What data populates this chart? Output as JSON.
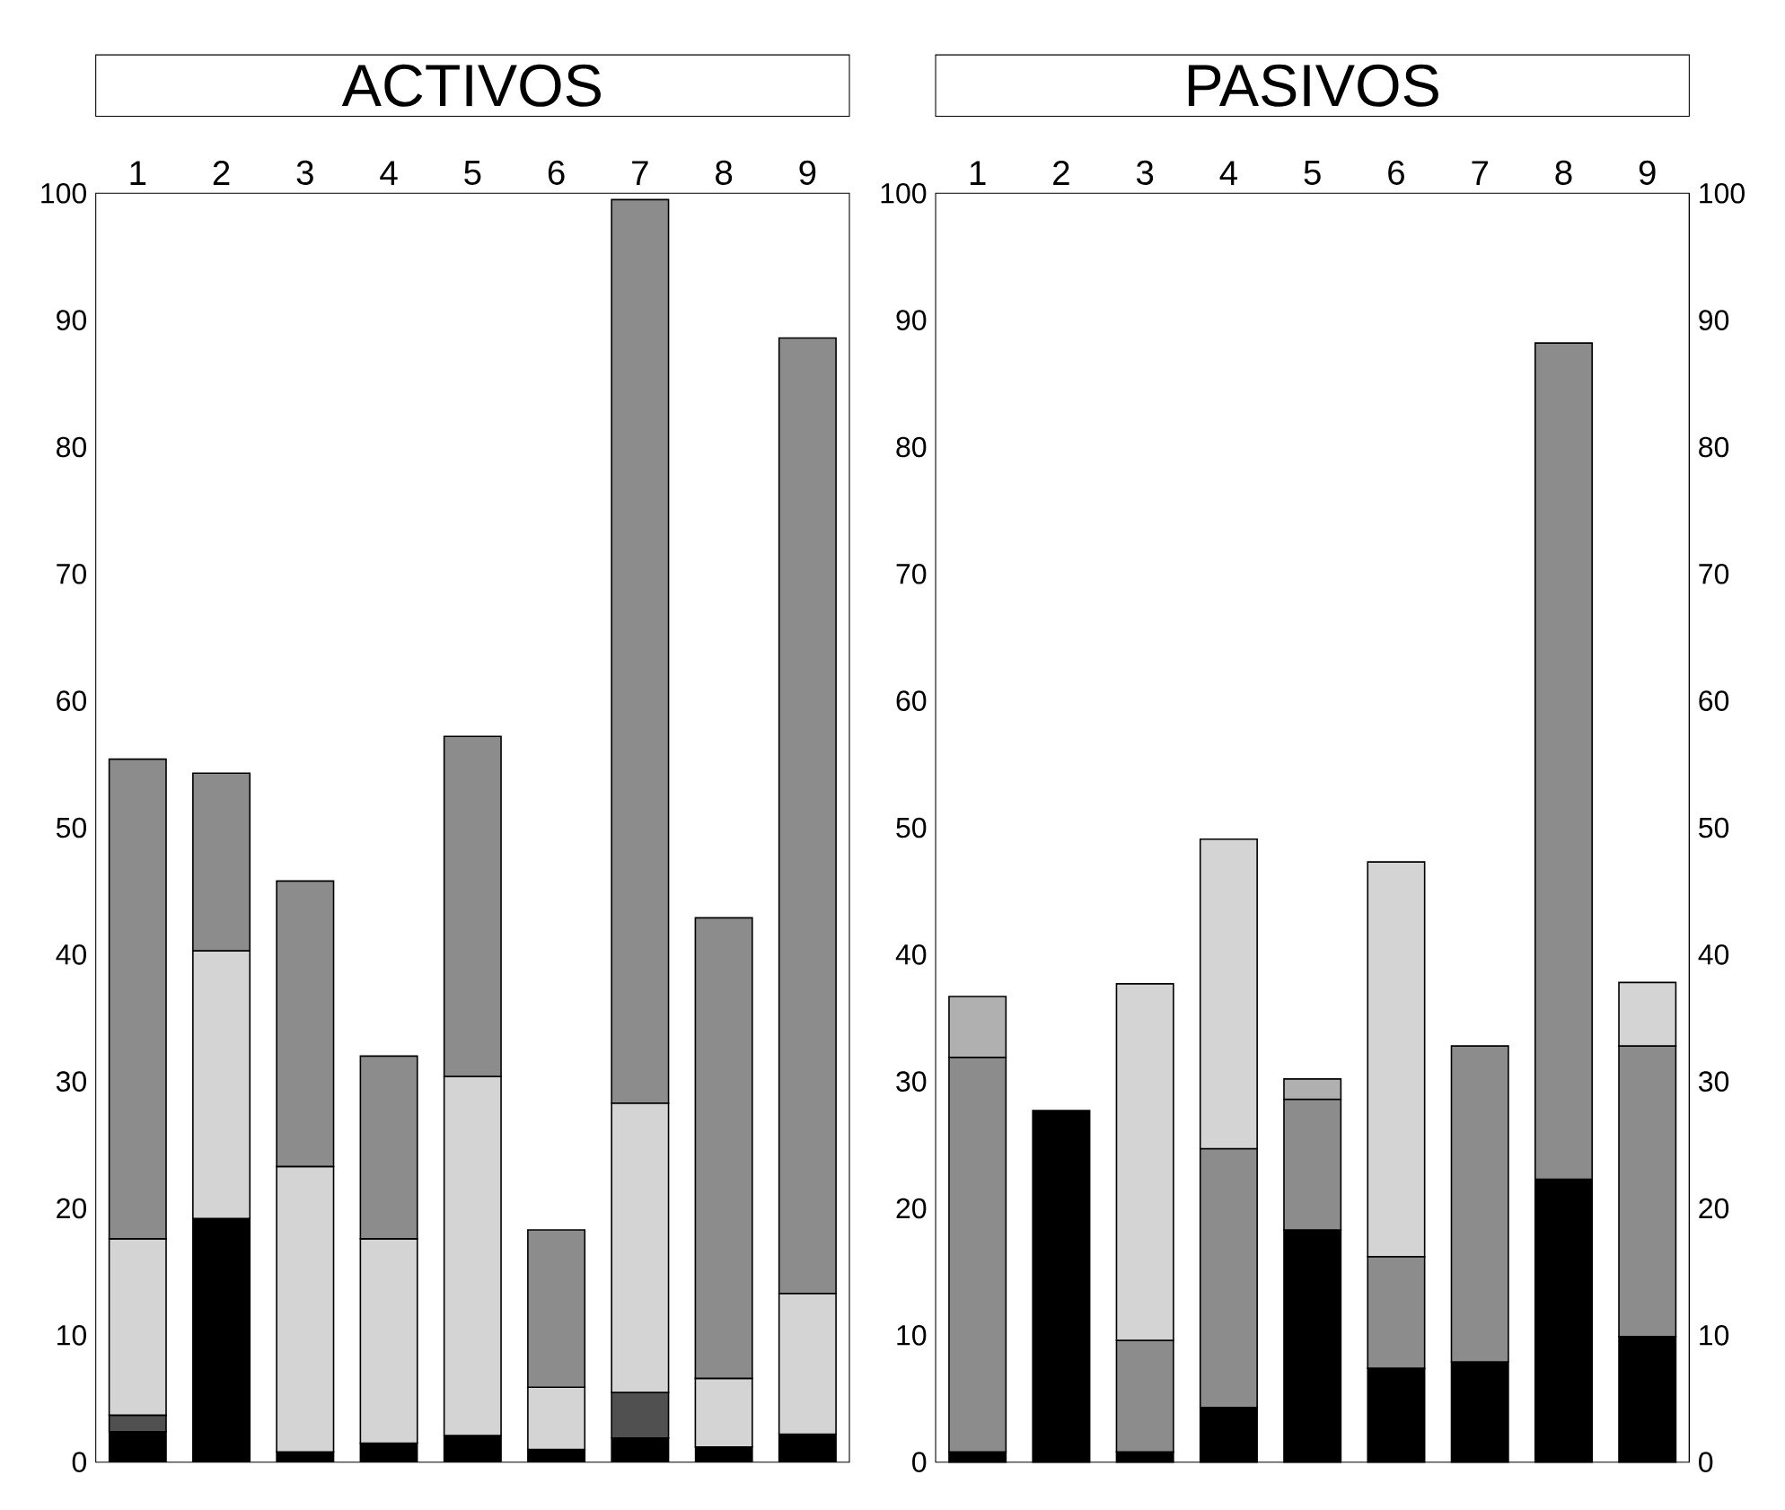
{
  "chart_data": [
    {
      "type": "bar",
      "title": "ACTIVOS",
      "stacked": true,
      "categories": [
        "1",
        "2",
        "3",
        "4",
        "5",
        "6",
        "7",
        "8",
        "9"
      ],
      "ylim": [
        0,
        100
      ],
      "yticks": [
        0,
        10,
        20,
        30,
        40,
        50,
        60,
        70,
        80,
        90,
        100
      ],
      "series": [
        {
          "color": "#000000",
          "values": [
            2.4,
            19.2,
            0.8,
            1.5,
            2.1,
            1.0,
            1.9,
            1.2,
            2.2
          ]
        },
        {
          "color": "#505050",
          "values": [
            1.3,
            null,
            null,
            null,
            null,
            null,
            3.6,
            null,
            null
          ]
        },
        {
          "color": "#d4d4d4",
          "values": [
            13.9,
            21.1,
            22.5,
            16.1,
            28.3,
            4.9,
            22.8,
            5.4,
            11.1
          ]
        },
        {
          "color": "#8c8c8c",
          "values": [
            37.8,
            14.0,
            22.5,
            14.4,
            26.8,
            12.4,
            71.2,
            36.3,
            75.3
          ]
        }
      ]
    },
    {
      "type": "bar",
      "title": "PASIVOS",
      "stacked": true,
      "categories": [
        "1",
        "2",
        "3",
        "4",
        "5",
        "6",
        "7",
        "8",
        "9"
      ],
      "ylim": [
        0,
        100
      ],
      "yticks": [
        0,
        10,
        20,
        30,
        40,
        50,
        60,
        70,
        80,
        90,
        100
      ],
      "y2lim": [
        0,
        100
      ],
      "y2ticks": [
        0,
        10,
        20,
        30,
        40,
        50,
        60,
        70,
        80,
        90,
        100
      ],
      "series": [
        {
          "color": "#000000",
          "values": [
            0.8,
            27.7,
            0.8,
            4.3,
            18.3,
            7.4,
            7.9,
            22.3,
            9.9
          ]
        },
        {
          "color": "#8c8c8c",
          "values": [
            31.1,
            null,
            8.8,
            20.4,
            10.3,
            8.8,
            24.9,
            65.9,
            22.9
          ]
        },
        {
          "color": "#d4d4d4",
          "values": [
            null,
            null,
            28.1,
            24.4,
            null,
            31.1,
            null,
            null,
            5.0
          ]
        },
        {
          "color": "#b0b0b0",
          "values": [
            4.8,
            null,
            null,
            null,
            1.6,
            null,
            null,
            null,
            null
          ]
        }
      ]
    }
  ]
}
